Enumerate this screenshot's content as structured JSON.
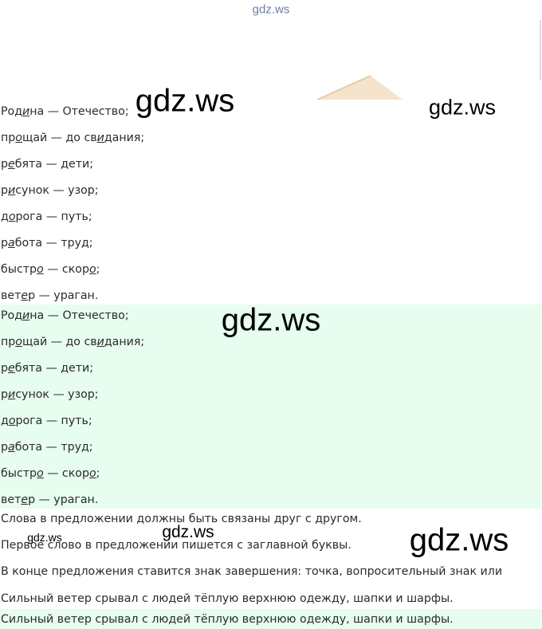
{
  "header": {
    "logo": "gdz.ws"
  },
  "watermarks": [
    "gdz.ws",
    "gdz.ws",
    "gdz.ws",
    "gdz.ws",
    "gdz.ws",
    "gdz.ws"
  ],
  "words": [
    [
      "Род",
      "и",
      "на — Отечество;"
    ],
    [
      "пр",
      "о",
      "щай — до св",
      "и",
      "дания;"
    ],
    [
      "р",
      "е",
      "бята — дети;"
    ],
    [
      "р",
      "и",
      "сунок — узор;"
    ],
    [
      "д",
      "о",
      "рога — путь;"
    ],
    [
      "р",
      "а",
      "бота — труд;"
    ],
    [
      "быстр",
      "о",
      " — скор",
      "о",
      ";"
    ],
    [
      "вет",
      "е",
      "р — ураган."
    ]
  ],
  "answer_words": [
    [
      "Род",
      "и",
      "на — Отечество;"
    ],
    [
      "пр",
      "о",
      "щай — до св",
      "и",
      "дания;"
    ],
    [
      "р",
      "е",
      "бята — дети;"
    ],
    [
      "р",
      "и",
      "сунок — узор;"
    ],
    [
      "д",
      "о",
      "рога — путь;"
    ],
    [
      "р",
      "а",
      "бота — труд;"
    ],
    [
      "быстр",
      "о",
      " — скор",
      "о",
      ";"
    ],
    [
      "вет",
      "е",
      "р — ураган."
    ]
  ],
  "rules": [
    "Слова в предложении должны быть связаны друг с другом.",
    "Первое слово в предложении пишется с заглавной буквы.",
    "В конце предложения ставится знак завершения: точка, вопросительный знак или",
    "Сильный ветер срывал с людей тёплую верхнюю одежду, шапки и шарфы."
  ],
  "answer_sentence": "Сильный ветер срывал с людей тёплую верхнюю одежду, шапки и шарфы."
}
